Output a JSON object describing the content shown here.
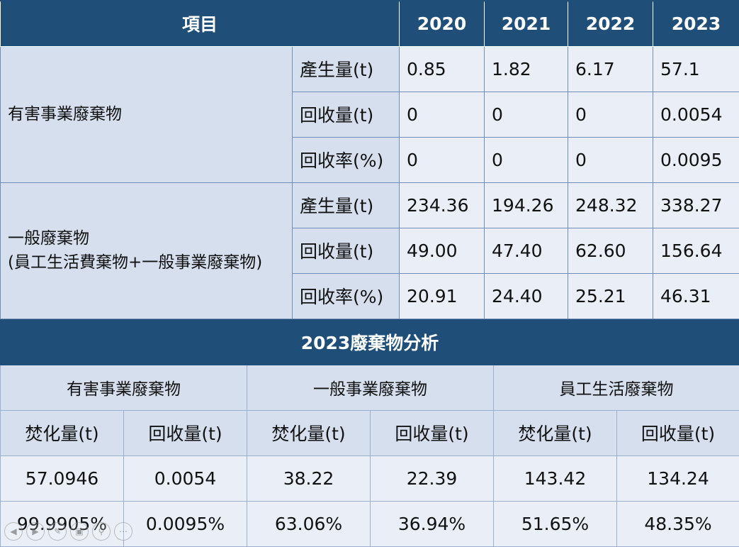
{
  "top_table": {
    "header": [
      "項目",
      "2020",
      "2021",
      "2022",
      "2023"
    ],
    "groups": [
      {
        "category_lines": [
          "有害事業廢棄物"
        ],
        "rows": [
          {
            "label": "產生量(t)",
            "values": [
              "0.85",
              "1.82",
              "6.17",
              "57.1"
            ]
          },
          {
            "label": "回收量(t)",
            "values": [
              "0",
              "0",
              "0",
              "0.0054"
            ]
          },
          {
            "label": "回收率(%)",
            "values": [
              "0",
              "0",
              "0",
              "0.0095"
            ]
          }
        ]
      },
      {
        "category_lines": [
          "一般廢棄物",
          "(員工生活費棄物+一般事業廢棄物)"
        ],
        "rows": [
          {
            "label": "產生量(t)",
            "values": [
              "234.36",
              "194.26",
              "248.32",
              "338.27"
            ]
          },
          {
            "label": "回收量(t)",
            "values": [
              "49.00",
              "47.40",
              "62.60",
              "156.64"
            ]
          },
          {
            "label": "回收率(%)",
            "values": [
              "20.91",
              "24.40",
              "25.21",
              "46.31"
            ]
          }
        ]
      }
    ]
  },
  "bottom_table": {
    "title": "2023廢棄物分析",
    "groups": [
      "有害事業廢棄物",
      "一般事業廢棄物",
      "員工生活廢棄物"
    ],
    "subheaders": [
      "焚化量(t)",
      "回收量(t)",
      "焚化量(t)",
      "回收量(t)",
      "焚化量(t)",
      "回收量(t)"
    ],
    "amounts": [
      "57.0946",
      "0.0054",
      "38.22",
      "22.39",
      "143.42",
      "134.24"
    ],
    "percents": [
      "99.9905%",
      "0.0095%",
      "63.06%",
      "36.94%",
      "51.65%",
      "48.35%"
    ]
  },
  "nav_icons": [
    "arrow-left-icon",
    "arrow-right-icon",
    "pen-icon",
    "slides-icon",
    "zoom-icon",
    "more-icon"
  ]
}
